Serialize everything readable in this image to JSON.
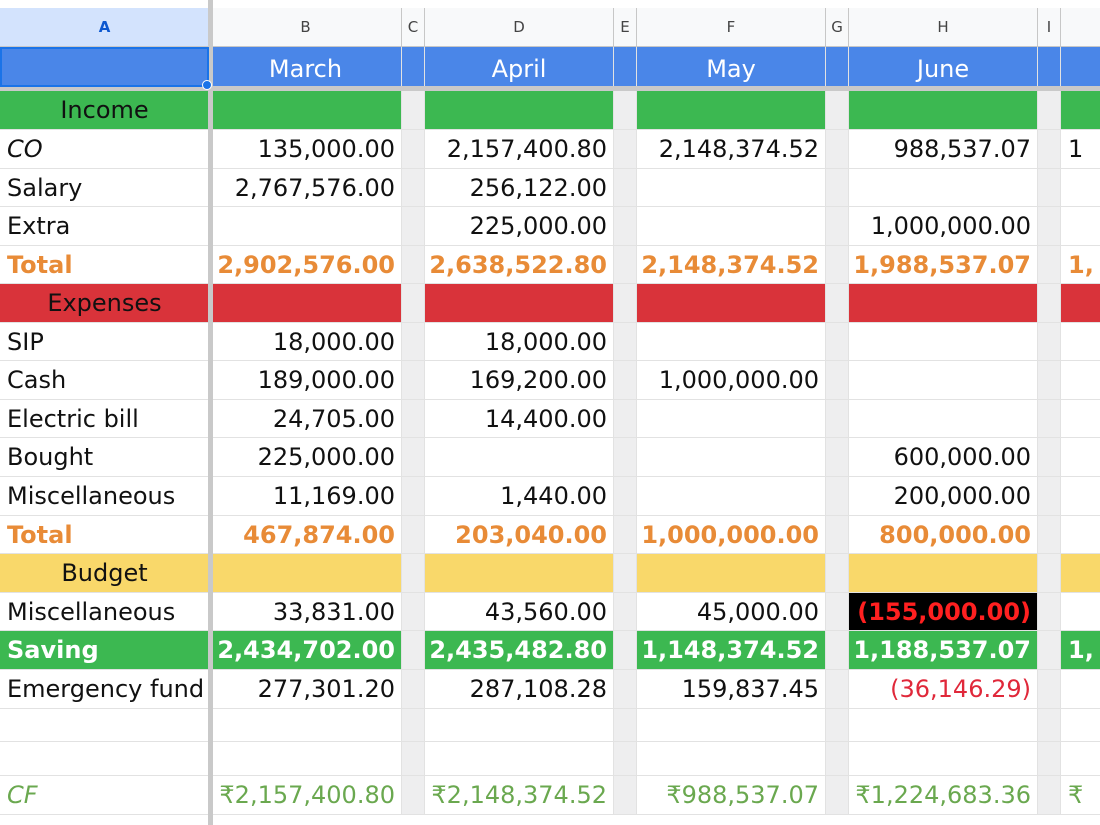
{
  "column_letters": [
    "A",
    "B",
    "C",
    "D",
    "E",
    "F",
    "G",
    "H",
    "I"
  ],
  "months": [
    "March",
    "April",
    "May",
    "June"
  ],
  "sections": {
    "income": "Income",
    "expenses": "Expenses",
    "budget": "Budget"
  },
  "income_rows": [
    {
      "label": "CO",
      "values": [
        "135,000.00",
        "2,157,400.80",
        "2,148,374.52",
        "988,537.07"
      ],
      "next_partial": "1"
    },
    {
      "label": "Salary",
      "values": [
        "2,767,576.00",
        "256,122.00",
        "",
        ""
      ],
      "next_partial": ""
    },
    {
      "label": "Extra",
      "values": [
        "",
        "225,000.00",
        "",
        "1,000,000.00"
      ],
      "next_partial": ""
    }
  ],
  "income_total": {
    "label": "Total",
    "values": [
      "2,902,576.00",
      "2,638,522.80",
      "2,148,374.52",
      "1,988,537.07"
    ],
    "next_partial": "1,"
  },
  "expense_rows": [
    {
      "label": "SIP",
      "values": [
        "18,000.00",
        "18,000.00",
        "",
        ""
      ]
    },
    {
      "label": "Cash",
      "values": [
        "189,000.00",
        "169,200.00",
        "1,000,000.00",
        ""
      ]
    },
    {
      "label": "Electric bill",
      "values": [
        "24,705.00",
        "14,400.00",
        "",
        ""
      ]
    },
    {
      "label": "Bought",
      "values": [
        "225,000.00",
        "",
        "",
        "600,000.00"
      ]
    },
    {
      "label": "Miscellaneous",
      "values": [
        "11,169.00",
        "1,440.00",
        "",
        "200,000.00"
      ]
    }
  ],
  "expense_total": {
    "label": "Total",
    "values": [
      "467,874.00",
      "203,040.00",
      "1,000,000.00",
      "800,000.00"
    ]
  },
  "budget_rows": [
    {
      "label": "Miscellaneous",
      "values": [
        "33,831.00",
        "43,560.00",
        "45,000.00",
        "(155,000.00)"
      ]
    }
  ],
  "saving": {
    "label": "Saving",
    "values": [
      "2,434,702.00",
      "2,435,482.80",
      "1,148,374.52",
      "1,188,537.07"
    ],
    "next_partial": "1,"
  },
  "emergency": {
    "label": "Emergency fund",
    "values": [
      "277,301.20",
      "287,108.28",
      "159,837.45",
      "(36,146.29)"
    ]
  },
  "cf": {
    "label": "CF",
    "values": [
      "₹2,157,400.80",
      "₹2,148,374.52",
      "₹988,537.07",
      "₹1,224,683.36"
    ],
    "next_partial": "₹"
  },
  "colors": {
    "month_header": "#4a86e8",
    "income": "#3cb851",
    "expenses": "#d9333a",
    "budget": "#f9d86a",
    "total_text": "#e88b37",
    "negative": "#e0283a",
    "cf_text": "#6aa84f",
    "selection": "#1a73e8"
  }
}
